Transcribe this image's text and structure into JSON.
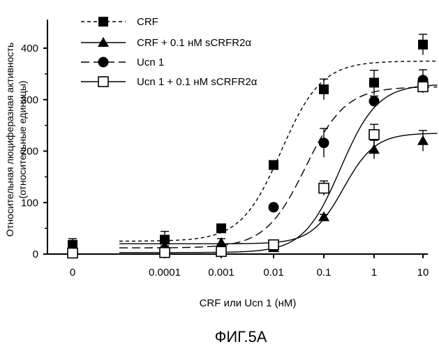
{
  "figure_label": "ФИГ.5А",
  "chart_data": {
    "type": "scatter",
    "title": "",
    "xlabel": "CRF или Ucn 1 (нМ)",
    "ylabel_line1": "Относительная люциферазная активность",
    "ylabel_line2": "(относительные единицы)",
    "x_scale": "log",
    "x_tick_labels": [
      "0",
      "0.0001",
      "0.001",
      "0.01",
      "0.1",
      "1",
      "10"
    ],
    "x_tick_values": [
      0,
      0.0001,
      0.001,
      0.01,
      0.1,
      1,
      10
    ],
    "y_tick_labels": [
      "0",
      "100",
      "200",
      "300",
      "400"
    ],
    "y_tick_values": [
      0,
      100,
      200,
      300,
      400
    ],
    "ylim": [
      0,
      440
    ],
    "x": [
      0,
      0.0001,
      0.001,
      0.01,
      0.1,
      1,
      10
    ],
    "series": [
      {
        "name": "CRF",
        "marker": "square-filled",
        "line": "short-dash",
        "values": [
          18,
          28,
          50,
          173,
          320,
          333,
          407
        ],
        "errors": [
          12,
          16,
          6,
          7,
          20,
          24,
          20
        ],
        "fit": {
          "bottom": 25,
          "top": 375,
          "ec50": 0.015,
          "hill": 1.1
        }
      },
      {
        "name": "CRF + 0.1 нМ sCRFR2α",
        "marker": "triangle-filled",
        "line": "solid",
        "values": [
          12,
          15,
          22,
          12,
          72,
          203,
          220
        ],
        "errors": [
          8,
          10,
          8,
          5,
          5,
          18,
          20
        ],
        "fit": {
          "bottom": 20,
          "top": 235,
          "ec50": 0.25,
          "hill": 1.4
        }
      },
      {
        "name": "Ucn 1",
        "marker": "circle-filled",
        "line": "long-dash",
        "values": [
          5,
          8,
          5,
          91,
          216,
          297,
          338
        ],
        "errors": [
          6,
          8,
          6,
          5,
          28,
          10,
          20
        ],
        "fit": {
          "bottom": 12,
          "top": 325,
          "ec50": 0.045,
          "hill": 1.1
        }
      },
      {
        "name": "Ucn 1 + 0.1 нМ sCRFR2α",
        "marker": "square-open",
        "line": "solid",
        "values": [
          2,
          3,
          5,
          18,
          128,
          232,
          325
        ],
        "errors": [
          5,
          6,
          6,
          5,
          14,
          20,
          12
        ],
        "fit": {
          "bottom": 3,
          "top": 330,
          "ec50": 0.22,
          "hill": 1.2
        }
      }
    ],
    "legend_location": "top-left"
  }
}
